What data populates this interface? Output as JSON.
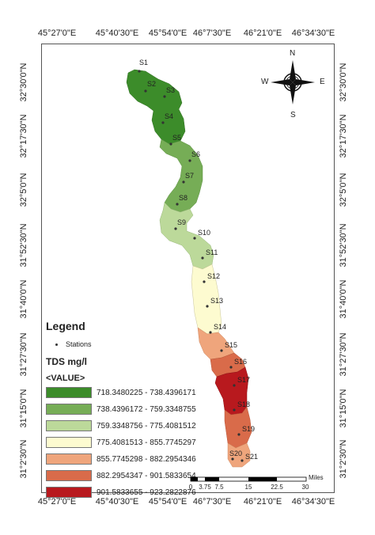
{
  "axes": {
    "top": [
      "45°27'0\"E",
      "45°40'30\"E",
      "45°54'0\"E",
      "46°7'30\"E",
      "46°21'0\"E",
      "46°34'30\"E"
    ],
    "bottom": [
      "45°27'0\"E",
      "45°40'30\"E",
      "45°54'0\"E",
      "46°7'30\"E",
      "46°21'0\"E",
      "46°34'30\"E"
    ],
    "left": [
      "32°30'0\"N",
      "32°17'30\"N",
      "32°5'0\"N",
      "31°52'30\"N",
      "31°40'0\"N",
      "31°27'30\"N",
      "31°15'0\"N",
      "31°2'30\"N"
    ],
    "right": [
      "32°30'0\"N",
      "32°17'30\"N",
      "32°5'0\"N",
      "31°52'30\"N",
      "31°40'0\"N",
      "31°27'30\"N",
      "31°15'0\"N",
      "31°2'30\"N"
    ]
  },
  "stations": [
    "S1",
    "S2",
    "S3",
    "S4",
    "S5",
    "S6",
    "S7",
    "S8",
    "S9",
    "S10",
    "S11",
    "S12",
    "S13",
    "S14",
    "S15",
    "S16",
    "S17",
    "S18",
    "S19",
    "S20",
    "S21"
  ],
  "legend": {
    "title": "Legend",
    "stations_label": "Stations",
    "field": "TDS mg/l",
    "value_label": "<VALUE>",
    "classes": [
      {
        "range": "718.3480225 - 738.4396171",
        "color": "#3c8c2a"
      },
      {
        "range": "738.4396172 - 759.3348755",
        "color": "#76ad56"
      },
      {
        "range": "759.3348756 - 775.4081512",
        "color": "#bcd99a"
      },
      {
        "range": "775.4081513 - 855.7745297",
        "color": "#fdfbd0"
      },
      {
        "range": "855.7745298 - 882.2954346",
        "color": "#efa57c"
      },
      {
        "range": "882.2954347 - 901.5833654",
        "color": "#d96b4a"
      },
      {
        "range": "901.5833655 - 923.2822876",
        "color": "#b8191e"
      }
    ]
  },
  "scalebar": {
    "ticks": [
      "0",
      "3.75",
      "7.5",
      "15",
      "22.5",
      "30"
    ],
    "unit": "Miles"
  },
  "north_arrow": {
    "n": "N",
    "s": "S",
    "e": "E",
    "w": "W"
  }
}
